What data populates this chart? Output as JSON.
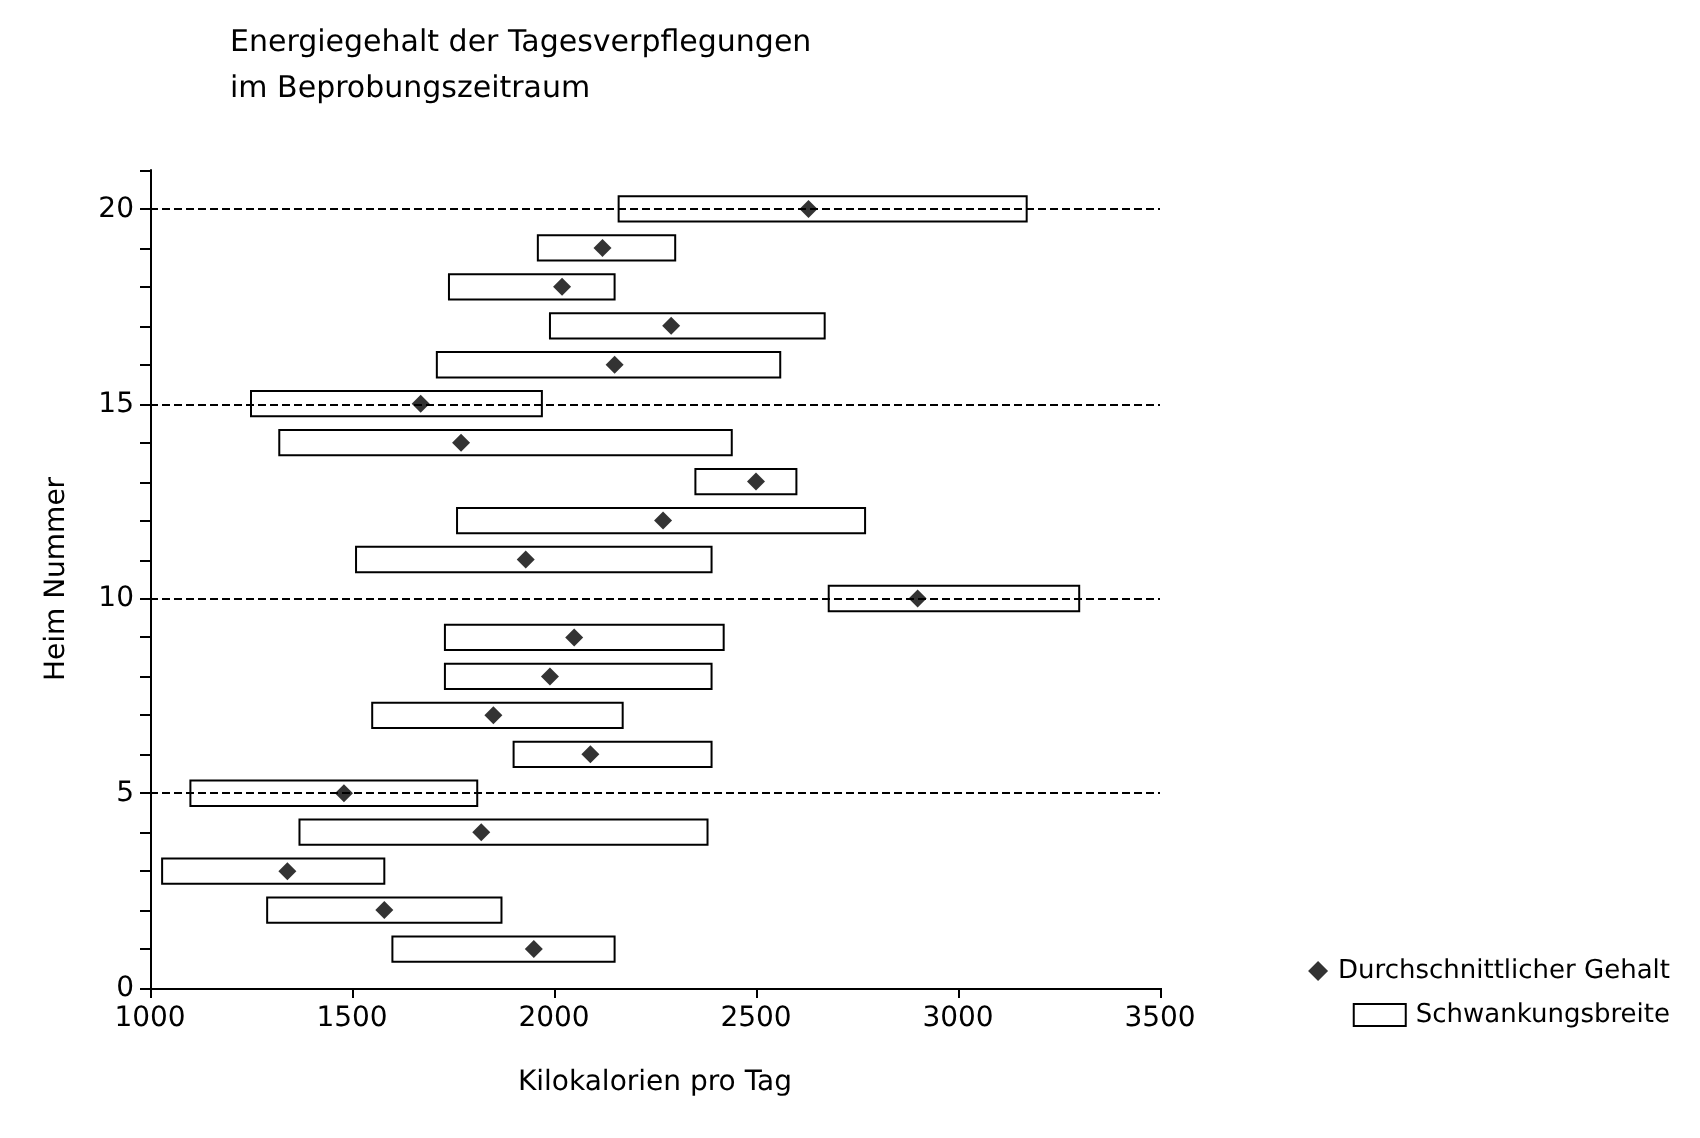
{
  "chart_data": {
    "type": "bar",
    "orientation": "horizontal",
    "title": "Energiegehalt der Tagesverpflegungen",
    "subtitle": "im Beprobungszeitraum",
    "xlabel": "Kilokalorien pro Tag",
    "ylabel": "Heim Nummer",
    "categories": [
      "20",
      null,
      null,
      null,
      null,
      "15",
      null,
      null,
      null,
      null,
      "10",
      null,
      null,
      null,
      null,
      "5",
      null,
      null,
      null,
      null,
      "0"
    ],
    "series": [
      {
        "name": "Durchschnittlicher Gehalt",
        "type": "scatter",
        "color": "#000000",
        "marker": "diamond",
        "values": [
          2630,
          2120,
          2020,
          2290,
          2150,
          1670,
          1770,
          2500,
          2270,
          1930,
          2900,
          2050,
          1990,
          1850,
          2090,
          1480,
          1820,
          1340,
          1580,
          1950,
          null
        ]
      },
      {
        "name": "Schwankungsbreite",
        "type": "bar",
        "color": "#ffffff",
        "base": [
          2160,
          1960,
          1740,
          1990,
          1710,
          1250,
          1320,
          2350,
          1760,
          1510,
          2680,
          1730,
          1730,
          1550,
          1900,
          1100,
          1370,
          1030,
          1290,
          1600,
          null
        ],
        "values": [
          1010,
          340,
          410,
          680,
          850,
          720,
          1120,
          250,
          1010,
          880,
          620,
          690,
          660,
          620,
          490,
          710,
          1010,
          550,
          580,
          550,
          null
        ]
      }
    ],
    "xlim": [
      1000,
      3500
    ],
    "xticks": [
      1000,
      1500,
      2000,
      2500,
      3000,
      3500
    ],
    "ref_lines": [
      {
        "axis": "y",
        "value": "20",
        "line_style": "dashed"
      },
      {
        "axis": "y",
        "value": "15",
        "line_style": "dashed"
      },
      {
        "axis": "y",
        "value": "10",
        "line_style": "dashed"
      },
      {
        "axis": "y",
        "value": "5",
        "line_style": "dashed"
      }
    ],
    "legend": "bottom right"
  }
}
